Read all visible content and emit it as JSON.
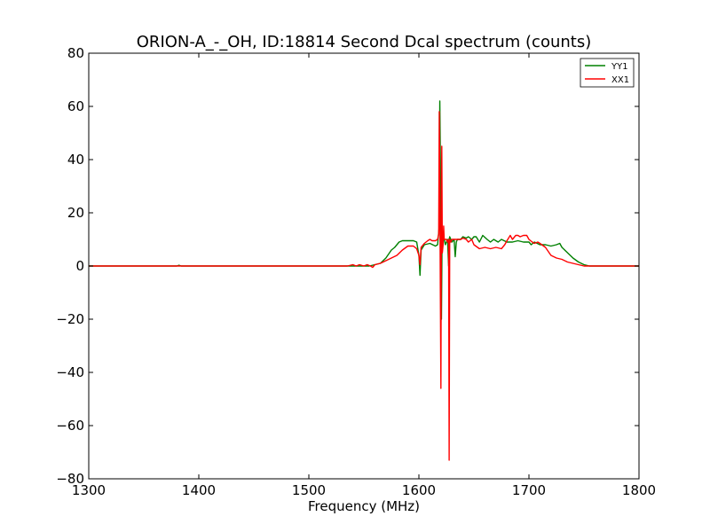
{
  "chart_data": {
    "type": "line",
    "title": "ORION-A_-_OH, ID:18814 Second Dcal spectrum (counts)",
    "xlabel": "Frequency (MHz)",
    "ylabel": "",
    "xlim": [
      1300,
      1800
    ],
    "ylim": [
      -80,
      80
    ],
    "xticks": [
      1300,
      1400,
      1500,
      1600,
      1700,
      1800
    ],
    "yticks": [
      -80,
      -60,
      -40,
      -20,
      0,
      20,
      40,
      60,
      80
    ],
    "xtick_labels": [
      "1300",
      "1400",
      "1500",
      "1600",
      "1700",
      "1800"
    ],
    "ytick_labels": [
      "−80",
      "−60",
      "−40",
      "−20",
      "0",
      "20",
      "40",
      "60",
      "80"
    ],
    "grid": false,
    "legend_position": "top-right",
    "series": [
      {
        "name": "YY1",
        "color": "#008000",
        "x": [
          1300,
          1380,
          1382,
          1384,
          1500,
          1555,
          1560,
          1565,
          1570,
          1575,
          1578,
          1580,
          1582,
          1585,
          1590,
          1595,
          1598,
          1600,
          1601,
          1602,
          1605,
          1610,
          1615,
          1617,
          1618.5,
          1619,
          1619.5,
          1620,
          1620.5,
          1621,
          1621.5,
          1622,
          1623,
          1624,
          1625,
          1626,
          1627,
          1627.5,
          1628,
          1629,
          1630,
          1632,
          1633,
          1634,
          1635,
          1638,
          1640,
          1643,
          1645,
          1648,
          1650,
          1652,
          1655,
          1658,
          1662,
          1665,
          1668,
          1672,
          1675,
          1680,
          1685,
          1690,
          1695,
          1700,
          1702,
          1705,
          1710,
          1715,
          1720,
          1725,
          1728,
          1730,
          1735,
          1740,
          1745,
          1750,
          1755,
          1760,
          1765,
          1770,
          1780,
          1800
        ],
        "y": [
          0,
          0,
          0.3,
          0,
          0,
          0,
          0.5,
          1,
          3,
          6,
          7,
          8,
          9,
          9.5,
          9.5,
          9.5,
          9,
          4,
          -3.5,
          6,
          8,
          8.5,
          7.5,
          8,
          15,
          62,
          40,
          5,
          -20,
          8,
          9,
          9.5,
          10,
          8,
          9,
          10,
          0,
          10,
          11,
          10,
          9,
          10,
          3.5,
          9,
          10,
          10,
          11,
          10.5,
          11,
          10,
          11,
          11,
          9,
          11.5,
          10,
          9,
          10,
          9,
          10,
          9,
          9,
          9.5,
          9,
          9,
          8,
          9,
          8,
          8,
          7.5,
          8,
          8.5,
          7,
          5,
          3,
          1.5,
          0.5,
          0,
          0,
          0,
          0,
          0,
          0
        ]
      },
      {
        "name": "XX1",
        "color": "#ff0000",
        "x": [
          1300,
          1350,
          1400,
          1500,
          1535,
          1540,
          1543,
          1546,
          1550,
          1553,
          1556,
          1558,
          1560,
          1565,
          1570,
          1575,
          1580,
          1585,
          1590,
          1595,
          1598,
          1600,
          1601,
          1602,
          1605,
          1608,
          1610,
          1612,
          1615,
          1617,
          1618,
          1618.5,
          1619,
          1619.5,
          1620,
          1620.4,
          1620.8,
          1621.3,
          1622,
          1622.5,
          1623,
          1624,
          1625,
          1626,
          1627,
          1627.5,
          1628,
          1629,
          1630,
          1632,
          1635,
          1638,
          1640,
          1643,
          1645,
          1648,
          1650,
          1655,
          1660,
          1665,
          1670,
          1675,
          1678,
          1680,
          1683,
          1685,
          1688,
          1690,
          1692,
          1695,
          1698,
          1700,
          1703,
          1705,
          1708,
          1710,
          1715,
          1720,
          1725,
          1730,
          1735,
          1740,
          1745,
          1750,
          1755,
          1760,
          1765,
          1780,
          1800
        ],
        "y": [
          0,
          0,
          0,
          0,
          0,
          0.5,
          0,
          0.5,
          0,
          0.5,
          0,
          -0.5,
          0.5,
          1,
          2,
          3,
          4,
          6,
          7.5,
          7.5,
          6.5,
          4,
          0.5,
          7,
          8.5,
          9.5,
          10,
          9.5,
          9.5,
          10,
          12,
          58,
          30,
          -10,
          -46,
          20,
          45,
          5,
          8,
          15,
          10,
          10,
          10,
          9,
          10,
          -73,
          10,
          9,
          10,
          10,
          10,
          10,
          10.5,
          10,
          9,
          10,
          8,
          6.5,
          7,
          6.5,
          7,
          6.5,
          8,
          9.5,
          11.5,
          10,
          11.5,
          11.5,
          11,
          11.5,
          11.5,
          10,
          9,
          8.5,
          9,
          8.5,
          7,
          4,
          3,
          2.5,
          1.5,
          1,
          0.5,
          0,
          0,
          0,
          0,
          0,
          0
        ]
      }
    ]
  }
}
